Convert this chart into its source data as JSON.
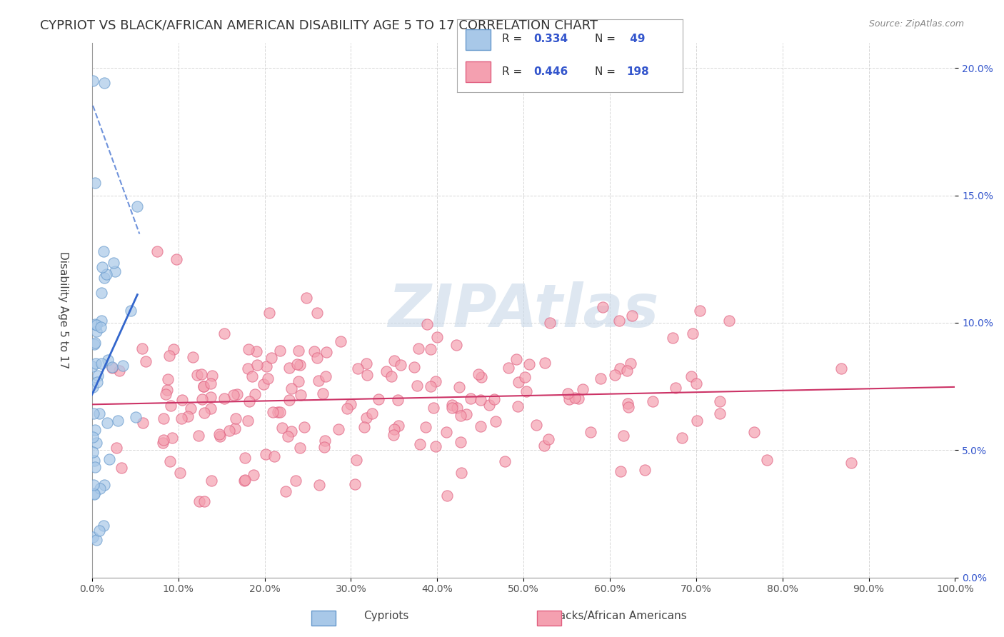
{
  "title": "CYPRIOT VS BLACK/AFRICAN AMERICAN DISABILITY AGE 5 TO 17 CORRELATION CHART",
  "source": "Source: ZipAtlas.com",
  "ylabel": "Disability Age 5 to 17",
  "xlim": [
    0.0,
    1.0
  ],
  "ylim": [
    0.0,
    0.21
  ],
  "xticks": [
    0.0,
    0.1,
    0.2,
    0.3,
    0.4,
    0.5,
    0.6,
    0.7,
    0.8,
    0.9,
    1.0
  ],
  "xtick_labels": [
    "0.0%",
    "10.0%",
    "20.0%",
    "30.0%",
    "40.0%",
    "50.0%",
    "60.0%",
    "70.0%",
    "80.0%",
    "90.0%",
    "100.0%"
  ],
  "yticks": [
    0.0,
    0.05,
    0.1,
    0.15,
    0.2
  ],
  "ytick_labels": [
    "0.0%",
    "5.0%",
    "10.0%",
    "15.0%",
    "20.0%"
  ],
  "cypriot_color": "#a8c8e8",
  "cypriot_edge": "#6699cc",
  "black_color": "#f4a0b0",
  "black_edge": "#e06080",
  "blue_line_color": "#3366cc",
  "pink_line_color": "#cc3366",
  "grid_color": "#cccccc",
  "background_color": "#ffffff",
  "watermark": "ZIPAtlas",
  "watermark_color": "#c8d8e8",
  "R1": 0.334,
  "N1": 49,
  "R2": 0.446,
  "N2": 198,
  "legend_text_color": "#3355cc",
  "cypriot_seed": 42,
  "black_seed": 123
}
